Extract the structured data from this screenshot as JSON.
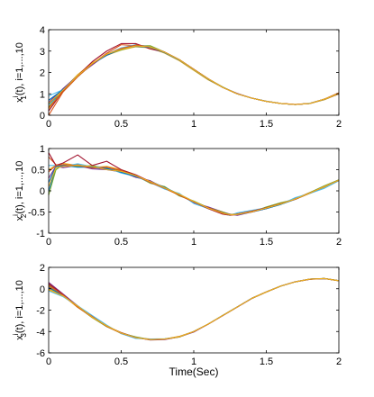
{
  "figure": {
    "xlabel": "Time(Sec)"
  },
  "series_colors": [
    "#0072bd",
    "#d95319",
    "#edb120",
    "#7e2f8e",
    "#77ac30",
    "#4dbeee",
    "#a2142f",
    "#0072bd",
    "#d95319",
    "#edb120"
  ],
  "chart_data": [
    {
      "type": "line",
      "ylabel_main": "x",
      "ylabel_sup": "i",
      "ylabel_sub": "1",
      "ylabel_rest": "(t), i=1,...,10",
      "xlim": [
        0,
        2
      ],
      "ylim": [
        0,
        4
      ],
      "xticks": [
        0,
        0.5,
        1,
        1.5,
        2
      ],
      "xtick_labels": [
        "0",
        "0.5",
        "1",
        "1.5",
        "2"
      ],
      "yticks": [
        0,
        1,
        2,
        3,
        4
      ],
      "ytick_labels": [
        "0",
        "1",
        "2",
        "3",
        "4"
      ],
      "grid": false,
      "x": [
        0,
        0.1,
        0.2,
        0.3,
        0.4,
        0.5,
        0.6,
        0.7,
        0.8,
        0.9,
        1.0,
        1.1,
        1.2,
        1.3,
        1.4,
        1.5,
        1.6,
        1.7,
        1.8,
        1.9,
        2.0
      ],
      "series": [
        {
          "values": [
            0.5,
            1.15,
            1.85,
            2.4,
            2.85,
            3.1,
            3.25,
            3.2,
            2.95,
            2.6,
            2.15,
            1.7,
            1.3,
            1.0,
            0.8,
            0.65,
            0.55,
            0.5,
            0.55,
            0.75,
            1.0
          ]
        },
        {
          "values": [
            0.0,
            1.1,
            1.8,
            2.4,
            2.9,
            3.3,
            3.25,
            3.15,
            2.95,
            2.6,
            2.15,
            1.7,
            1.3,
            1.0,
            0.8,
            0.65,
            0.55,
            0.5,
            0.55,
            0.75,
            1.05
          ]
        },
        {
          "values": [
            0.3,
            1.2,
            1.9,
            2.45,
            2.8,
            3.05,
            3.2,
            3.15,
            2.9,
            2.55,
            2.1,
            1.65,
            1.3,
            1.0,
            0.8,
            0.65,
            0.55,
            0.5,
            0.55,
            0.72,
            1.0
          ]
        },
        {
          "values": [
            0.6,
            1.25,
            1.85,
            2.35,
            2.85,
            3.1,
            3.3,
            3.2,
            2.95,
            2.6,
            2.15,
            1.7,
            1.3,
            1.02,
            0.8,
            0.65,
            0.55,
            0.5,
            0.55,
            0.75,
            1.0
          ]
        },
        {
          "values": [
            0.4,
            1.1,
            1.8,
            2.4,
            2.85,
            3.05,
            3.25,
            3.25,
            2.95,
            2.6,
            2.15,
            1.7,
            1.32,
            1.0,
            0.8,
            0.65,
            0.55,
            0.5,
            0.55,
            0.75,
            1.02
          ]
        },
        {
          "values": [
            0.9,
            1.2,
            1.8,
            2.4,
            2.85,
            3.15,
            3.3,
            3.2,
            2.95,
            2.6,
            2.15,
            1.7,
            1.3,
            1.0,
            0.8,
            0.66,
            0.55,
            0.5,
            0.56,
            0.75,
            1.0
          ]
        },
        {
          "values": [
            0.2,
            1.15,
            1.85,
            2.5,
            3.0,
            3.35,
            3.35,
            3.1,
            2.95,
            2.6,
            2.15,
            1.7,
            1.3,
            1.0,
            0.8,
            0.65,
            0.55,
            0.5,
            0.55,
            0.75,
            1.0
          ]
        },
        {
          "values": [
            0.7,
            1.2,
            1.85,
            2.4,
            2.8,
            3.1,
            3.22,
            3.18,
            2.92,
            2.58,
            2.13,
            1.68,
            1.3,
            1.0,
            0.8,
            0.65,
            0.55,
            0.5,
            0.55,
            0.74,
            1.0
          ]
        },
        {
          "values": [
            0.35,
            1.1,
            1.8,
            2.4,
            2.85,
            3.12,
            3.28,
            3.2,
            2.95,
            2.6,
            2.15,
            1.7,
            1.3,
            1.0,
            0.8,
            0.65,
            0.55,
            0.51,
            0.55,
            0.75,
            1.0
          ]
        },
        {
          "values": [
            0.55,
            1.18,
            1.85,
            2.42,
            2.86,
            3.08,
            3.24,
            3.2,
            2.94,
            2.6,
            2.14,
            1.7,
            1.3,
            1.0,
            0.8,
            0.65,
            0.55,
            0.5,
            0.55,
            0.75,
            1.01
          ]
        }
      ]
    },
    {
      "type": "line",
      "ylabel_main": "x",
      "ylabel_sup": "i",
      "ylabel_sub": "2",
      "ylabel_rest": "(t), i=1,...,10",
      "xlim": [
        0,
        2
      ],
      "ylim": [
        -1,
        1
      ],
      "xticks": [
        0,
        0.5,
        1,
        1.5,
        2
      ],
      "xtick_labels": [
        "0",
        "0.5",
        "1",
        "1.5",
        "2"
      ],
      "yticks": [
        -1,
        -0.5,
        0,
        0.5,
        1
      ],
      "ytick_labels": [
        "-1",
        "-0.5",
        "0",
        "0.5",
        "1"
      ],
      "grid": false,
      "x": [
        0,
        0.05,
        0.1,
        0.2,
        0.3,
        0.4,
        0.5,
        0.6,
        0.7,
        0.8,
        0.9,
        1.0,
        1.1,
        1.2,
        1.25,
        1.3,
        1.4,
        1.5,
        1.6,
        1.7,
        1.8,
        1.9,
        2.0
      ],
      "series": [
        {
          "values": [
            0.0,
            0.55,
            0.6,
            0.58,
            0.55,
            0.52,
            0.45,
            0.35,
            0.22,
            0.08,
            -0.08,
            -0.25,
            -0.4,
            -0.52,
            -0.56,
            -0.56,
            -0.5,
            -0.42,
            -0.32,
            -0.2,
            -0.05,
            0.1,
            0.25
          ]
        },
        {
          "values": [
            0.8,
            0.62,
            0.6,
            0.62,
            0.58,
            0.55,
            0.48,
            0.35,
            0.2,
            0.06,
            -0.1,
            -0.27,
            -0.42,
            -0.55,
            -0.58,
            -0.56,
            -0.5,
            -0.4,
            -0.3,
            -0.18,
            -0.04,
            0.1,
            0.26
          ]
        },
        {
          "values": [
            0.5,
            0.6,
            0.65,
            0.6,
            0.55,
            0.58,
            0.5,
            0.38,
            0.2,
            0.05,
            -0.1,
            -0.25,
            -0.4,
            -0.53,
            -0.57,
            -0.55,
            -0.48,
            -0.4,
            -0.3,
            -0.2,
            -0.06,
            0.08,
            0.24
          ]
        },
        {
          "values": [
            0.3,
            0.58,
            0.55,
            0.6,
            0.52,
            0.5,
            0.45,
            0.32,
            0.24,
            0.06,
            -0.08,
            -0.28,
            -0.38,
            -0.5,
            -0.55,
            -0.58,
            -0.5,
            -0.42,
            -0.3,
            -0.18,
            -0.05,
            0.1,
            0.25
          ]
        },
        {
          "values": [
            -0.1,
            0.5,
            0.62,
            0.57,
            0.6,
            0.52,
            0.46,
            0.36,
            0.18,
            0.1,
            -0.12,
            -0.24,
            -0.4,
            -0.5,
            -0.56,
            -0.54,
            -0.5,
            -0.38,
            -0.28,
            -0.2,
            -0.04,
            0.12,
            0.26
          ]
        },
        {
          "values": [
            0.6,
            0.6,
            0.58,
            0.64,
            0.57,
            0.55,
            0.42,
            0.34,
            0.2,
            0.04,
            -0.06,
            -0.3,
            -0.42,
            -0.54,
            -0.58,
            -0.52,
            -0.46,
            -0.4,
            -0.32,
            -0.16,
            -0.06,
            0.06,
            0.24
          ]
        },
        {
          "values": [
            0.9,
            0.6,
            0.66,
            0.85,
            0.6,
            0.7,
            0.5,
            0.38,
            0.22,
            0.08,
            -0.1,
            -0.26,
            -0.42,
            -0.55,
            -0.57,
            -0.55,
            -0.48,
            -0.4,
            -0.3,
            -0.2,
            -0.05,
            0.1,
            0.25
          ]
        },
        {
          "values": [
            0.2,
            0.57,
            0.6,
            0.56,
            0.56,
            0.53,
            0.44,
            0.34,
            0.22,
            0.08,
            -0.09,
            -0.26,
            -0.4,
            -0.52,
            -0.56,
            -0.56,
            -0.5,
            -0.42,
            -0.32,
            -0.2,
            -0.05,
            0.1,
            0.25
          ]
        },
        {
          "values": [
            0.45,
            0.6,
            0.62,
            0.6,
            0.54,
            0.56,
            0.48,
            0.36,
            0.2,
            0.06,
            -0.1,
            -0.26,
            -0.4,
            -0.52,
            -0.57,
            -0.55,
            -0.5,
            -0.4,
            -0.3,
            -0.2,
            -0.05,
            0.1,
            0.25
          ]
        },
        {
          "values": [
            0.1,
            0.55,
            0.58,
            0.6,
            0.58,
            0.5,
            0.46,
            0.36,
            0.22,
            0.07,
            -0.08,
            -0.25,
            -0.41,
            -0.53,
            -0.56,
            -0.56,
            -0.49,
            -0.41,
            -0.31,
            -0.19,
            -0.05,
            0.1,
            0.25
          ]
        }
      ]
    },
    {
      "type": "line",
      "ylabel_main": "x",
      "ylabel_sup": "i",
      "ylabel_sub": "3",
      "ylabel_rest": "(t), i=1,...,10",
      "xlabel": "Time(Sec)",
      "xlim": [
        0,
        2
      ],
      "ylim": [
        -6,
        2
      ],
      "xticks": [
        0,
        0.5,
        1,
        1.5,
        2
      ],
      "xtick_labels": [
        "0",
        "0.5",
        "1",
        "1.5",
        "2"
      ],
      "yticks": [
        -6,
        -4,
        -2,
        0,
        2
      ],
      "ytick_labels": [
        "-6",
        "-4",
        "-2",
        "0",
        "2"
      ],
      "grid": false,
      "x": [
        0,
        0.1,
        0.2,
        0.3,
        0.4,
        0.5,
        0.6,
        0.7,
        0.8,
        0.9,
        1.0,
        1.1,
        1.2,
        1.3,
        1.4,
        1.5,
        1.6,
        1.7,
        1.8,
        1.9,
        2.0
      ],
      "series": [
        {
          "values": [
            0.4,
            -0.6,
            -1.6,
            -2.6,
            -3.5,
            -4.15,
            -4.55,
            -4.75,
            -4.7,
            -4.5,
            -4.0,
            -3.3,
            -2.5,
            -1.7,
            -0.9,
            -0.3,
            0.25,
            0.65,
            0.9,
            0.95,
            0.75
          ]
        },
        {
          "values": [
            0.2,
            -0.7,
            -1.7,
            -2.7,
            -3.5,
            -4.1,
            -4.55,
            -4.75,
            -4.72,
            -4.5,
            -4.0,
            -3.3,
            -2.5,
            -1.7,
            -0.9,
            -0.3,
            0.25,
            0.65,
            0.9,
            0.95,
            0.75
          ]
        },
        {
          "values": [
            0.0,
            -0.65,
            -1.75,
            -2.65,
            -3.45,
            -4.2,
            -4.6,
            -4.7,
            -4.7,
            -4.45,
            -4.0,
            -3.32,
            -2.5,
            -1.7,
            -0.9,
            -0.3,
            0.25,
            0.65,
            0.9,
            0.95,
            0.74
          ]
        },
        {
          "values": [
            0.6,
            -0.5,
            -1.6,
            -2.6,
            -3.5,
            -4.15,
            -4.55,
            -4.8,
            -4.75,
            -4.5,
            -4.05,
            -3.3,
            -2.5,
            -1.72,
            -0.92,
            -0.3,
            0.25,
            0.66,
            0.9,
            0.95,
            0.75
          ]
        },
        {
          "values": [
            0.3,
            -0.6,
            -1.65,
            -2.7,
            -3.55,
            -4.15,
            -4.5,
            -4.75,
            -4.7,
            -4.52,
            -4.0,
            -3.3,
            -2.48,
            -1.7,
            -0.9,
            -0.3,
            0.24,
            0.65,
            0.9,
            0.96,
            0.76
          ]
        },
        {
          "values": [
            -0.2,
            -0.75,
            -1.6,
            -2.5,
            -3.4,
            -4.2,
            -4.65,
            -4.7,
            -4.68,
            -4.5,
            -4.0,
            -3.3,
            -2.5,
            -1.7,
            -0.88,
            -0.3,
            0.26,
            0.65,
            0.9,
            0.95,
            0.75
          ]
        },
        {
          "values": [
            0.5,
            -0.55,
            -1.7,
            -2.65,
            -3.5,
            -4.12,
            -4.55,
            -4.78,
            -4.72,
            -4.48,
            -4.02,
            -3.3,
            -2.52,
            -1.7,
            -0.9,
            -0.3,
            0.25,
            0.65,
            0.88,
            0.95,
            0.75
          ]
        },
        {
          "values": [
            0.1,
            -0.62,
            -1.65,
            -2.62,
            -3.48,
            -4.14,
            -4.55,
            -4.75,
            -4.7,
            -4.5,
            -4.0,
            -3.3,
            -2.5,
            -1.7,
            -0.9,
            -0.3,
            0.25,
            0.65,
            0.9,
            0.95,
            0.75
          ]
        },
        {
          "values": [
            0.35,
            -0.6,
            -1.68,
            -2.6,
            -3.52,
            -4.16,
            -4.58,
            -4.74,
            -4.71,
            -4.5,
            -4.01,
            -3.31,
            -2.5,
            -1.71,
            -0.9,
            -0.3,
            0.25,
            0.65,
            0.9,
            0.95,
            0.75
          ]
        },
        {
          "values": [
            -0.1,
            -0.68,
            -1.62,
            -2.66,
            -3.46,
            -4.14,
            -4.56,
            -4.76,
            -4.7,
            -4.49,
            -4.0,
            -3.29,
            -2.5,
            -1.7,
            -0.9,
            -0.3,
            0.25,
            0.65,
            0.9,
            0.95,
            0.75
          ]
        }
      ]
    }
  ]
}
